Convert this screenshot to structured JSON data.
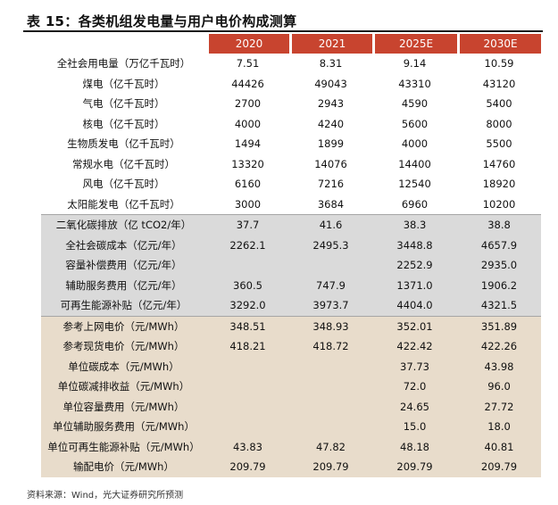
{
  "title": "表 15：各类机组发电量与用户电价构成测算",
  "columns": [
    "",
    "2020",
    "2021",
    "2025E",
    "2030E"
  ],
  "rows": [
    {
      "group": 0,
      "label": "全社会用电量（万亿千瓦时）",
      "values": [
        "7.51",
        "8.31",
        "9.14",
        "10.59"
      ]
    },
    {
      "group": 0,
      "label": "煤电（亿千瓦时）",
      "values": [
        "44426",
        "49043",
        "43310",
        "43120"
      ]
    },
    {
      "group": 0,
      "label": "气电（亿千瓦时）",
      "values": [
        "2700",
        "2943",
        "4590",
        "5400"
      ]
    },
    {
      "group": 0,
      "label": "核电（亿千瓦时）",
      "values": [
        "4000",
        "4240",
        "5600",
        "8000"
      ]
    },
    {
      "group": 0,
      "label": "生物质发电（亿千瓦时）",
      "values": [
        "1494",
        "1899",
        "4000",
        "5500"
      ]
    },
    {
      "group": 0,
      "label": "常规水电（亿千瓦时）",
      "values": [
        "13320",
        "14076",
        "14400",
        "14760"
      ]
    },
    {
      "group": 0,
      "label": "风电（亿千瓦时）",
      "values": [
        "6160",
        "7216",
        "12540",
        "18920"
      ]
    },
    {
      "group": 0,
      "label": "太阳能发电（亿千瓦时）",
      "values": [
        "3000",
        "3684",
        "6960",
        "10200"
      ]
    },
    {
      "group": 1,
      "label": "二氧化碳排放（亿 tCO2/年）",
      "values": [
        "37.7",
        "41.6",
        "38.3",
        "38.8"
      ]
    },
    {
      "group": 1,
      "label": "全社会碳成本（亿元/年）",
      "values": [
        "2262.1",
        "2495.3",
        "3448.8",
        "4657.9"
      ]
    },
    {
      "group": 1,
      "label": "容量补偿费用（亿元/年）",
      "values": [
        "",
        "",
        "2252.9",
        "2935.0"
      ]
    },
    {
      "group": 1,
      "label": "辅助服务费用（亿元/年）",
      "values": [
        "360.5",
        "747.9",
        "1371.0",
        "1906.2"
      ]
    },
    {
      "group": 1,
      "label": "可再生能源补贴（亿元/年）",
      "values": [
        "3292.0",
        "3973.7",
        "4404.0",
        "4321.5"
      ]
    },
    {
      "group": 2,
      "label": "参考上网电价（元/MWh）",
      "values": [
        "348.51",
        "348.93",
        "352.01",
        "351.89"
      ]
    },
    {
      "group": 2,
      "label": "参考现货电价（元/MWh）",
      "values": [
        "418.21",
        "418.72",
        "422.42",
        "422.26"
      ]
    },
    {
      "group": 2,
      "label": "单位碳成本（元/MWh）",
      "values": [
        "",
        "",
        "37.73",
        "43.98"
      ]
    },
    {
      "group": 2,
      "label": "单位碳减排收益（元/MWh）",
      "values": [
        "",
        "",
        "72.0",
        "96.0"
      ]
    },
    {
      "group": 2,
      "label": "单位容量费用（元/MWh）",
      "values": [
        "",
        "",
        "24.65",
        "27.72"
      ]
    },
    {
      "group": 2,
      "label": "单位辅助服务费用（元/MWh）",
      "values": [
        "",
        "",
        "15.0",
        "18.0"
      ]
    },
    {
      "group": 2,
      "label": "单位可再生能源补贴（元/MWh）",
      "values": [
        "43.83",
        "47.82",
        "48.18",
        "40.81"
      ]
    },
    {
      "group": 2,
      "label": "输配电价（元/MWh）",
      "values": [
        "209.79",
        "209.79",
        "209.79",
        "209.79"
      ]
    }
  ],
  "source": "资料来源：Wind，光大证券研究所预测"
}
